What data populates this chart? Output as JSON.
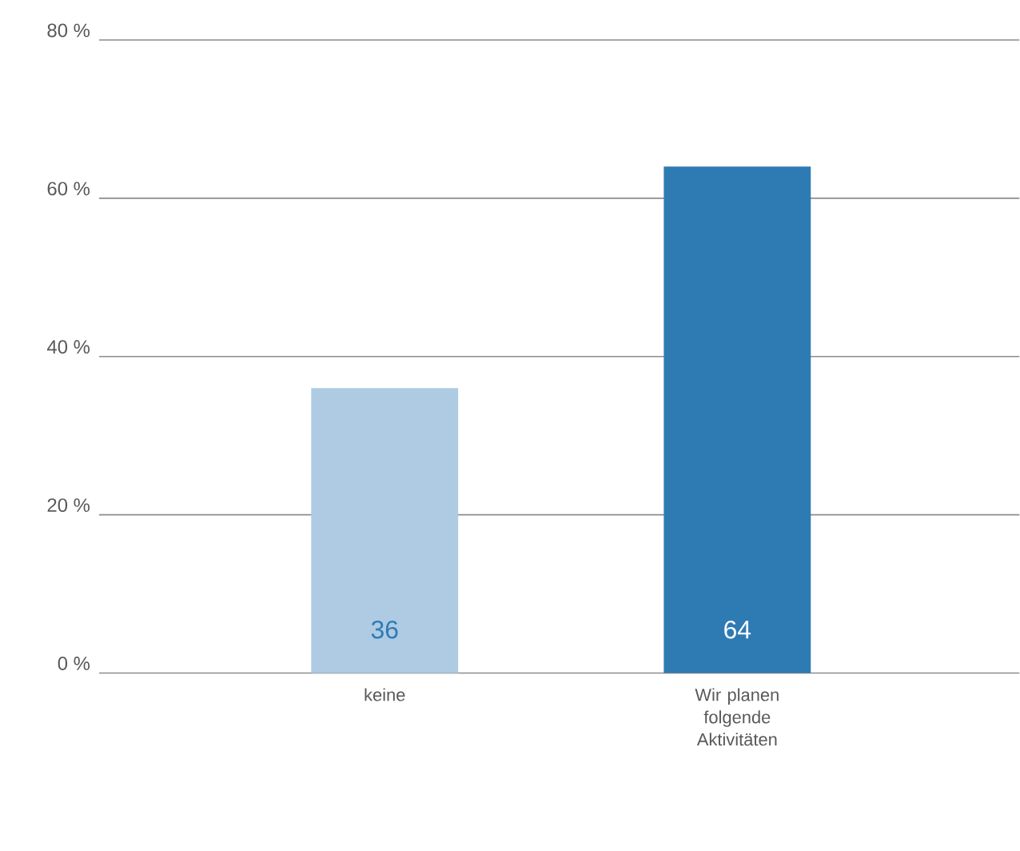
{
  "chart_data": {
    "type": "bar",
    "categories": [
      "keine",
      "Wir planen folgende Aktivitäten"
    ],
    "values": [
      36,
      64
    ],
    "colors": [
      "#aecbe3",
      "#2e7bb4"
    ],
    "ylim": [
      0,
      80
    ],
    "yticks": [
      {
        "value": 0,
        "label": "0 %"
      },
      {
        "value": 20,
        "label": "20 %"
      },
      {
        "value": 40,
        "label": "40 %"
      },
      {
        "value": 60,
        "label": "60 %"
      },
      {
        "value": 80,
        "label": "80 %"
      }
    ],
    "grid": "y",
    "data_labels": true
  }
}
